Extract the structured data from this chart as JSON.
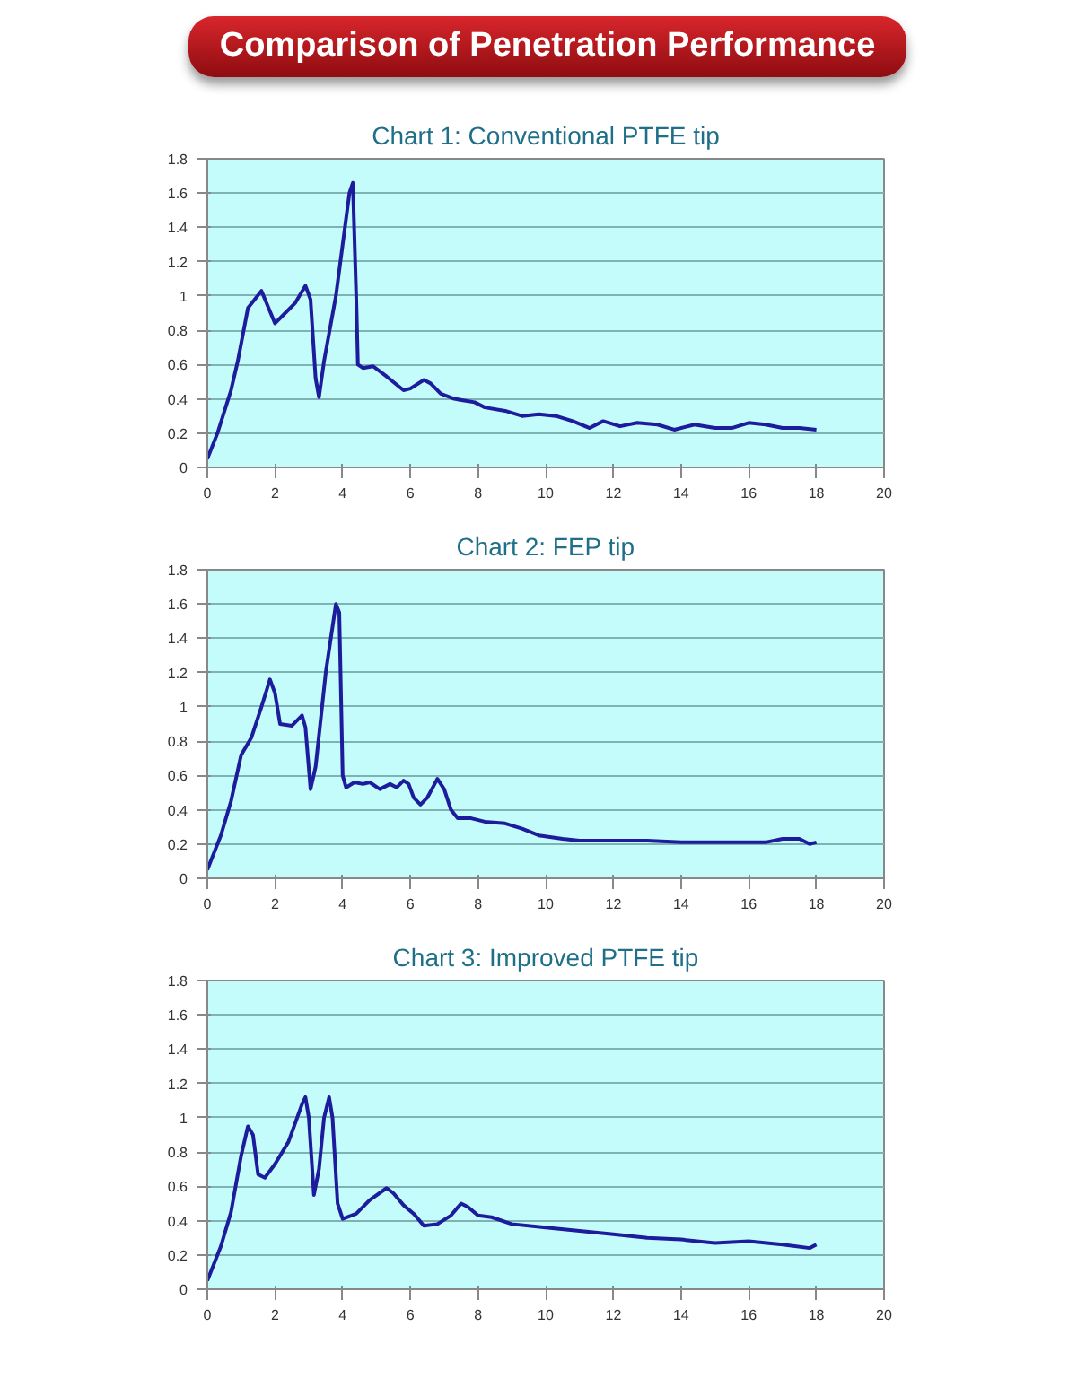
{
  "chart_data": [
    {
      "type": "line",
      "title": "Comparison of Penetration Performance",
      "subtitle": "Chart 1: Conventional PTFE tip",
      "xlim": [
        0,
        20
      ],
      "xticks": [
        0,
        2,
        4,
        6,
        8,
        10,
        12,
        14,
        16,
        18,
        20
      ],
      "ylim": [
        0,
        1.8
      ],
      "yticks": [
        0,
        0.2,
        0.4,
        0.6,
        0.8,
        1,
        1.2,
        1.4,
        1.6,
        1.8
      ],
      "grid": "y",
      "marker": "none",
      "line_style": "solid",
      "series": [
        {
          "color": "#1c1c9c",
          "x": [
            0,
            0.3,
            0.7,
            0.9,
            1.2,
            1.6,
            2.0,
            2.3,
            2.6,
            2.9,
            3.05,
            3.2,
            3.3,
            3.45,
            3.8,
            4.0,
            4.2,
            4.3,
            4.4,
            4.45,
            4.6,
            4.9,
            5.3,
            5.8,
            6.0,
            6.4,
            6.6,
            6.9,
            7.3,
            7.6,
            7.9,
            8.2,
            8.8,
            9.3,
            9.8,
            10.3,
            10.8,
            11.3,
            11.7,
            12.2,
            12.7,
            13.3,
            13.8,
            14.4,
            15,
            15.5,
            16.0,
            16.5,
            17,
            17.5,
            18
          ],
          "values": [
            0.05,
            0.2,
            0.45,
            0.62,
            0.93,
            1.03,
            0.84,
            0.9,
            0.96,
            1.06,
            0.98,
            0.52,
            0.41,
            0.62,
            1.0,
            1.3,
            1.6,
            1.66,
            1.0,
            0.6,
            0.58,
            0.59,
            0.53,
            0.45,
            0.46,
            0.51,
            0.49,
            0.43,
            0.4,
            0.39,
            0.38,
            0.35,
            0.33,
            0.3,
            0.31,
            0.3,
            0.27,
            0.23,
            0.27,
            0.24,
            0.26,
            0.25,
            0.22,
            0.25,
            0.23,
            0.23,
            0.26,
            0.25,
            0.23,
            0.23,
            0.22
          ]
        }
      ]
    },
    {
      "type": "line",
      "title": "Chart 2: FEP tip",
      "xlim": [
        0,
        20
      ],
      "xticks": [
        0,
        2,
        4,
        6,
        8,
        10,
        12,
        14,
        16,
        18,
        20
      ],
      "ylim": [
        0,
        1.8
      ],
      "yticks": [
        0,
        0.2,
        0.4,
        0.6,
        0.8,
        1,
        1.2,
        1.4,
        1.6,
        1.8
      ],
      "grid": "y",
      "marker": "none",
      "line_style": "solid",
      "series": [
        {
          "color": "#1c1c9c",
          "x": [
            0,
            0.4,
            0.7,
            1.0,
            1.3,
            1.6,
            1.85,
            2.0,
            2.15,
            2.5,
            2.8,
            2.9,
            3.05,
            3.2,
            3.5,
            3.8,
            3.9,
            4.0,
            4.1,
            4.35,
            4.6,
            4.8,
            5.1,
            5.4,
            5.6,
            5.8,
            5.95,
            6.1,
            6.3,
            6.5,
            6.8,
            7.0,
            7.2,
            7.4,
            7.8,
            8.2,
            8.8,
            9.3,
            9.8,
            10.5,
            11,
            12,
            13,
            14,
            15,
            16,
            16.5,
            17.0,
            17.5,
            17.8,
            18
          ],
          "values": [
            0.05,
            0.25,
            0.45,
            0.72,
            0.82,
            1.0,
            1.16,
            1.08,
            0.9,
            0.89,
            0.95,
            0.88,
            0.52,
            0.65,
            1.2,
            1.6,
            1.55,
            0.6,
            0.53,
            0.56,
            0.55,
            0.56,
            0.52,
            0.55,
            0.53,
            0.57,
            0.55,
            0.47,
            0.43,
            0.47,
            0.58,
            0.52,
            0.4,
            0.35,
            0.35,
            0.33,
            0.32,
            0.29,
            0.25,
            0.23,
            0.22,
            0.22,
            0.22,
            0.21,
            0.21,
            0.21,
            0.21,
            0.23,
            0.23,
            0.2,
            0.21
          ]
        }
      ]
    },
    {
      "type": "line",
      "title": "Chart 3: Improved PTFE tip",
      "xlim": [
        0,
        20
      ],
      "xticks": [
        0,
        2,
        4,
        6,
        8,
        10,
        12,
        14,
        16,
        18,
        20
      ],
      "ylim": [
        0,
        1.8
      ],
      "yticks": [
        0,
        0.2,
        0.4,
        0.6,
        0.8,
        1,
        1.2,
        1.4,
        1.6,
        1.8
      ],
      "grid": "y",
      "marker": "none",
      "line_style": "solid",
      "series": [
        {
          "color": "#1c1c9c",
          "x": [
            0,
            0.4,
            0.7,
            1.0,
            1.2,
            1.35,
            1.5,
            1.7,
            2.0,
            2.4,
            2.8,
            2.9,
            3.0,
            3.15,
            3.3,
            3.45,
            3.6,
            3.7,
            3.85,
            4.0,
            4.4,
            4.8,
            5.3,
            5.5,
            5.8,
            6.1,
            6.4,
            6.8,
            7.2,
            7.5,
            7.7,
            8.0,
            8.4,
            9,
            10,
            11,
            12,
            13,
            14,
            15,
            16,
            17,
            17.8,
            18
          ],
          "values": [
            0.05,
            0.25,
            0.45,
            0.78,
            0.95,
            0.9,
            0.67,
            0.65,
            0.73,
            0.86,
            1.08,
            1.12,
            1.0,
            0.55,
            0.7,
            1.0,
            1.12,
            1.0,
            0.5,
            0.41,
            0.44,
            0.52,
            0.59,
            0.56,
            0.49,
            0.44,
            0.37,
            0.38,
            0.43,
            0.5,
            0.48,
            0.43,
            0.42,
            0.38,
            0.36,
            0.34,
            0.32,
            0.3,
            0.29,
            0.27,
            0.28,
            0.26,
            0.24,
            0.26
          ]
        }
      ]
    }
  ]
}
